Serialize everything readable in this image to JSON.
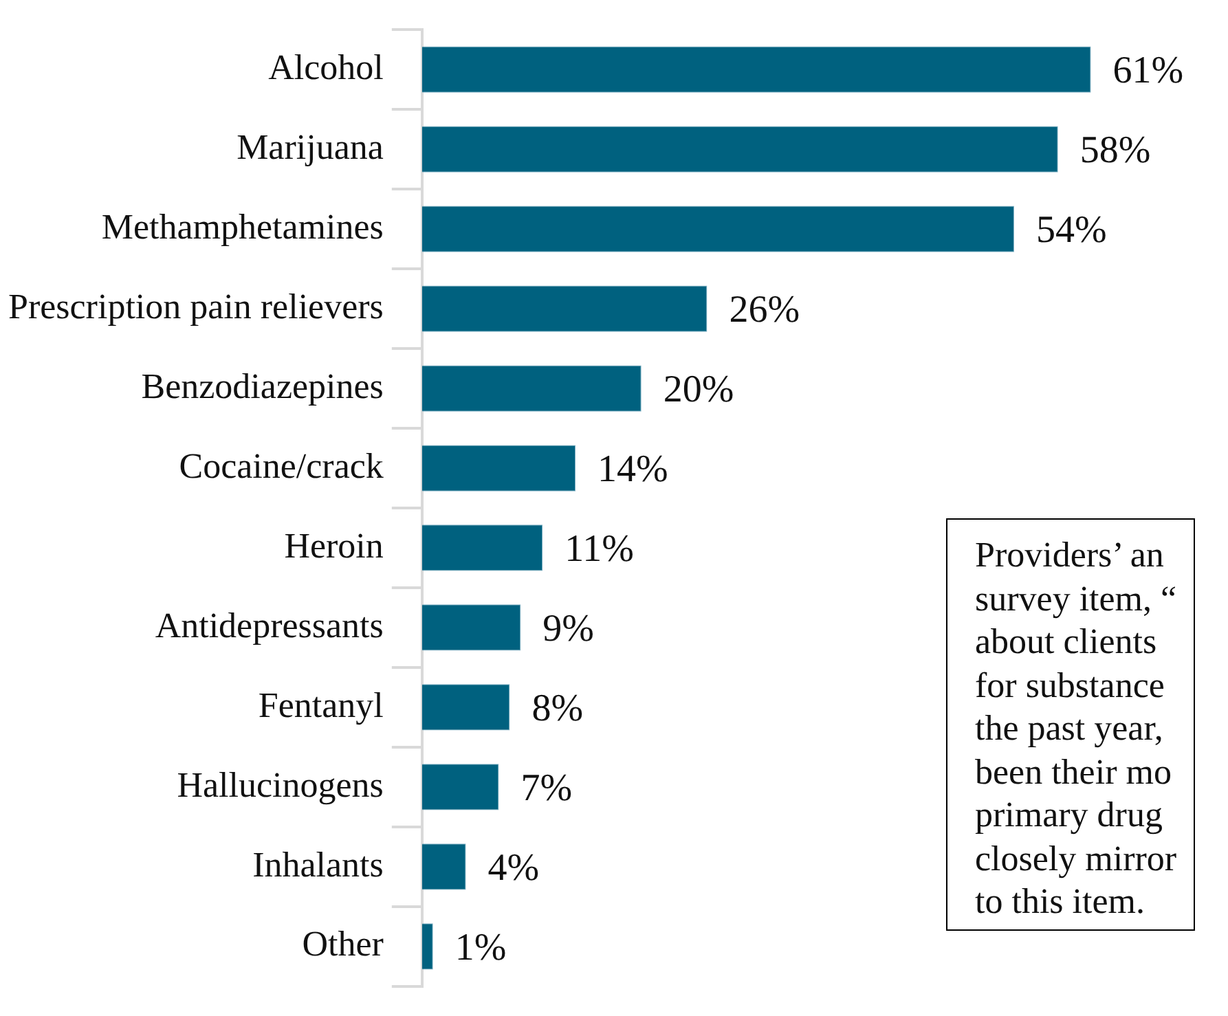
{
  "chart_data": {
    "type": "bar",
    "orientation": "horizontal",
    "categories": [
      "Alcohol",
      "Marijuana",
      "Methamphetamines",
      "Prescription pain relievers",
      "Benzodiazepines",
      "Cocaine/crack",
      "Heroin",
      "Antidepressants",
      "Fentanyl",
      "Hallucinogens",
      "Inhalants",
      "Other"
    ],
    "values": [
      61,
      58,
      54,
      26,
      20,
      14,
      11,
      9,
      8,
      7,
      4,
      1
    ],
    "value_labels": [
      "61%",
      "58%",
      "54%",
      "26%",
      "20%",
      "14%",
      "11%",
      "9%",
      "8%",
      "7%",
      "4%",
      "1%"
    ],
    "color": "#00617f",
    "legend": false,
    "annotations": [
      "Providers’ an\nsurvey item, “\nabout clients\nfor substance\nthe past year,\nbeen their mo\nprimary drug\nclosely mirror\nto this item."
    ]
  }
}
